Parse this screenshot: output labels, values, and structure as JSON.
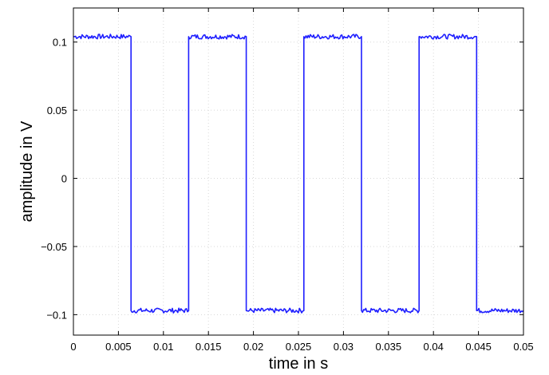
{
  "chart_data": {
    "type": "line",
    "title": "",
    "xlabel": "time in s",
    "ylabel": "amplitude in V",
    "xlim": [
      0,
      0.05
    ],
    "ylim": [
      -0.115,
      0.125
    ],
    "grid": true,
    "xticks": [
      0,
      0.005,
      0.01,
      0.015,
      0.02,
      0.025,
      0.03,
      0.035,
      0.04,
      0.045,
      0.05
    ],
    "xtick_labels": [
      "0",
      "0.005",
      "0.01",
      "0.015",
      "0.02",
      "0.025",
      "0.03",
      "0.035",
      "0.04",
      "0.045",
      "0.05"
    ],
    "yticks": [
      -0.1,
      -0.05,
      0,
      0.05,
      0.1
    ],
    "ytick_labels": [
      "−0.1",
      "−0.05",
      "0",
      "0.05",
      "0.1"
    ],
    "line_color": "#1f1fff",
    "series": [
      {
        "name": "",
        "high_level": 0.104,
        "low_level": -0.097,
        "transitions": [
          {
            "t": 0.0,
            "level": "high"
          },
          {
            "t": 0.0064,
            "level": "low"
          },
          {
            "t": 0.0128,
            "level": "high"
          },
          {
            "t": 0.0192,
            "level": "low"
          },
          {
            "t": 0.0256,
            "level": "high"
          },
          {
            "t": 0.032,
            "level": "low"
          },
          {
            "t": 0.0384,
            "level": "high"
          },
          {
            "t": 0.0448,
            "level": "low"
          },
          {
            "t": 0.05,
            "level": "end"
          }
        ]
      }
    ]
  }
}
